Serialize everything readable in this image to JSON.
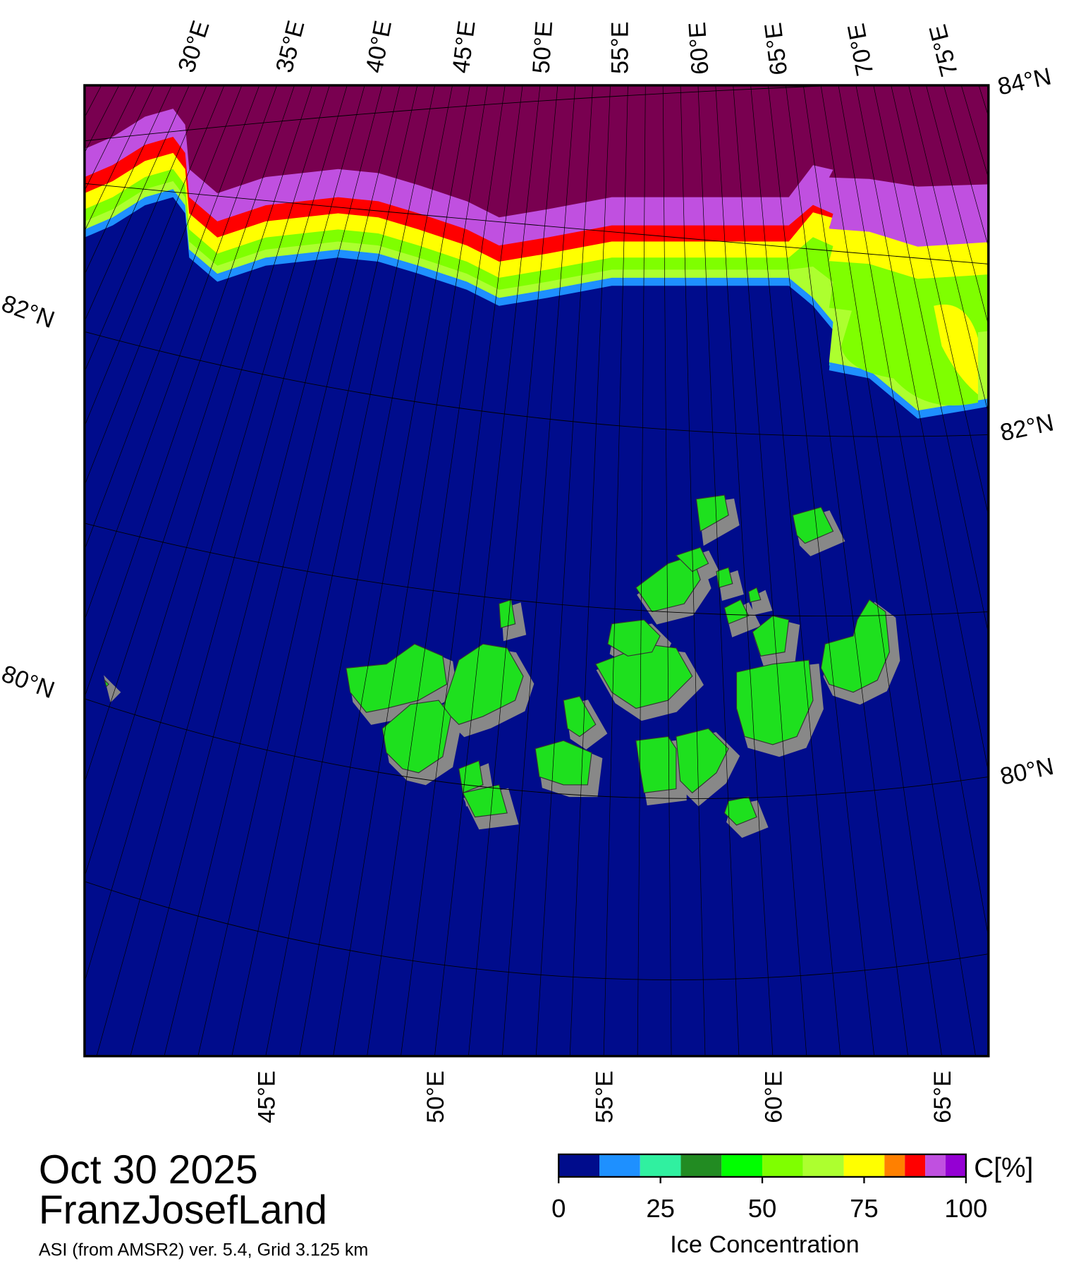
{
  "map": {
    "top_lon_labels": [
      "30°E",
      "35°E",
      "40°E",
      "45°E",
      "50°E",
      "55°E",
      "60°E",
      "65°E",
      "70°E",
      "75°E"
    ],
    "bottom_lon_labels": [
      "45°E",
      "50°E",
      "55°E",
      "60°E",
      "65°E"
    ],
    "left_lat_labels": [
      "82°N",
      "80°N"
    ],
    "right_lat_labels": [
      "84°N",
      "82°N",
      "80°N"
    ]
  },
  "caption": {
    "date": "Oct 30 2025",
    "region": "FranzJosefLand",
    "source": "ASI (from AMSR2) ver. 5.4,  Grid 3.125 km"
  },
  "colorbar": {
    "title": "Ice Concentration",
    "unit": "C[%]",
    "bounds": [
      0,
      10,
      20,
      30,
      40,
      50,
      60,
      70,
      80,
      85,
      90,
      95,
      100
    ],
    "colors": [
      "#000c8c",
      "#1e90ff",
      "#30f0a0",
      "#228b22",
      "#00ff00",
      "#7fff00",
      "#adff2f",
      "#ffff00",
      "#ff8000",
      "#ff0000",
      "#c050e0",
      "#9400d3"
    ],
    "ticks": [
      0,
      25,
      50,
      75,
      100
    ]
  }
}
